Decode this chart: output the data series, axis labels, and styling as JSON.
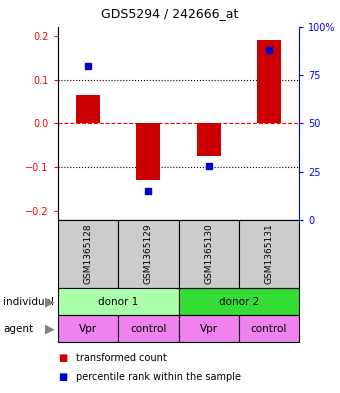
{
  "title": "GDS5294 / 242666_at",
  "samples": [
    "GSM1365128",
    "GSM1365129",
    "GSM1365130",
    "GSM1365131"
  ],
  "red_values": [
    0.065,
    -0.13,
    -0.075,
    0.19
  ],
  "blue_percentiles": [
    80,
    15,
    28,
    88
  ],
  "individual_groups": [
    {
      "label": "donor 1",
      "span": [
        0,
        2
      ],
      "color": "#AAFFAA"
    },
    {
      "label": "donor 2",
      "span": [
        2,
        4
      ],
      "color": "#33DD33"
    }
  ],
  "agent_groups": [
    {
      "label": "Vpr",
      "span": [
        0,
        1
      ],
      "color": "#EE82EE"
    },
    {
      "label": "control",
      "span": [
        1,
        2
      ],
      "color": "#EE82EE"
    },
    {
      "label": "Vpr",
      "span": [
        2,
        3
      ],
      "color": "#EE82EE"
    },
    {
      "label": "control",
      "span": [
        3,
        4
      ],
      "color": "#EE82EE"
    }
  ],
  "ylim": [
    -0.22,
    0.22
  ],
  "yticks_left": [
    -0.2,
    -0.1,
    0.0,
    0.1,
    0.2
  ],
  "yticks_right": [
    0,
    25,
    50,
    75,
    100
  ],
  "red_color": "#CC0000",
  "blue_color": "#0000CC",
  "bar_width": 0.4,
  "legend_red": "transformed count",
  "legend_blue": "percentile rank within the sample",
  "sample_bg_color": "#CCCCCC",
  "fig_width": 3.4,
  "fig_height": 3.93,
  "dpi": 100
}
